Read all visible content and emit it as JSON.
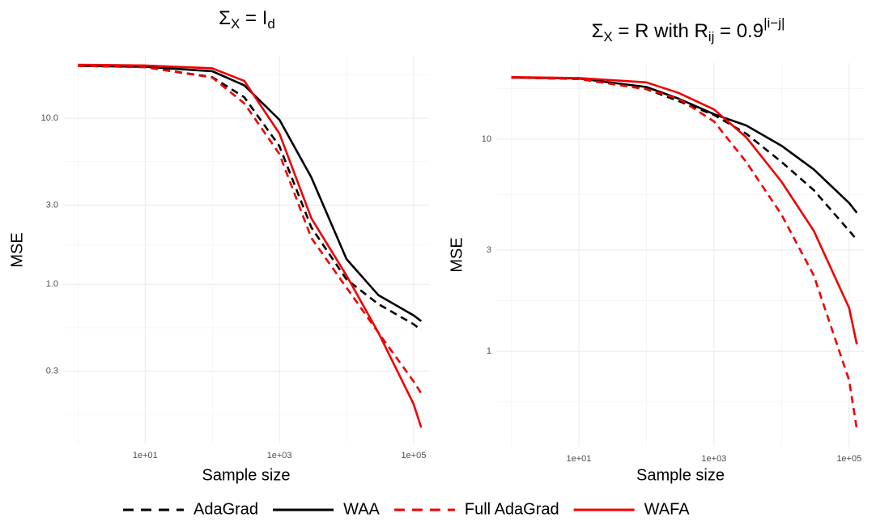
{
  "chart_data": [
    {
      "type": "line",
      "title": [
        {
          "text": "Σ"
        },
        {
          "text": "X",
          "sub": true
        },
        {
          "text": " = I"
        },
        {
          "text": "d",
          "sub": true
        }
      ],
      "xlabel": "Sample size",
      "ylabel": "MSE",
      "x": [
        1,
        10,
        100,
        300,
        1000,
        3000,
        10000,
        30000,
        100000,
        130000
      ],
      "series": [
        {
          "name": "AdaGrad",
          "color": "#000000",
          "dash": true,
          "values": [
            20.7,
            20.3,
            17.7,
            13.4,
            6.8,
            2.2,
            1.07,
            0.76,
            0.575,
            0.53
          ]
        },
        {
          "name": "WAA",
          "color": "#000000",
          "dash": false,
          "values": [
            20.7,
            20.4,
            19.2,
            15.8,
            9.8,
            4.4,
            1.42,
            0.86,
            0.65,
            0.6
          ]
        },
        {
          "name": "Full AdaGrad",
          "color": "#ee0000",
          "dash": true,
          "values": [
            20.7,
            20.3,
            17.6,
            12.3,
            6.1,
            1.9,
            0.955,
            0.51,
            0.26,
            0.22
          ]
        },
        {
          "name": "WAFA",
          "color": "#ee0000",
          "dash": false,
          "values": [
            21,
            20.8,
            20,
            16.8,
            8.1,
            2.5,
            1.13,
            0.51,
            0.19,
            0.137
          ]
        }
      ],
      "xlog": true,
      "ylog": true,
      "grid": true,
      "xlim": [
        0.6,
        170000
      ],
      "ylim": [
        0.11,
        23.5
      ],
      "xticks": [
        {
          "value": 10,
          "label": "1e+01"
        },
        {
          "value": 1000,
          "label": "1e+03"
        },
        {
          "value": 100000,
          "label": "1e+05"
        }
      ],
      "yticks": [
        0.3,
        {
          "value": 1,
          "label": "1.0"
        },
        {
          "value": 3,
          "label": "3.0"
        },
        {
          "value": 10,
          "label": "10.0"
        }
      ],
      "legend": "bottom"
    },
    {
      "type": "line",
      "title": [
        {
          "text": "Σ"
        },
        {
          "text": "X",
          "sub": true
        },
        {
          "text": " = R with R"
        },
        {
          "text": "ij",
          "sub": true
        },
        {
          "text": " = 0.9"
        },
        {
          "text": "|i−j|",
          "sup": true
        }
      ],
      "xlabel": "Sample size",
      "ylabel": "MSE",
      "x": [
        1,
        10,
        100,
        300,
        1000,
        3000,
        10000,
        30000,
        100000,
        130000
      ],
      "series": [
        {
          "name": "AdaGrad",
          "color": "#000000",
          "dash": true,
          "values": [
            19.5,
            19.2,
            17.2,
            15.1,
            13.0,
            10.6,
            7.8,
            5.75,
            3.7,
            3.36
          ]
        },
        {
          "name": "WAA",
          "color": "#000000",
          "dash": false,
          "values": [
            19.5,
            19.3,
            17.6,
            15.5,
            13.1,
            11.6,
            9.3,
            7.2,
            5.0,
            4.5
          ]
        },
        {
          "name": "Full AdaGrad",
          "color": "#ee0000",
          "dash": true,
          "values": [
            19.5,
            19.2,
            17.2,
            15.5,
            12.1,
            7.8,
            4.4,
            2.28,
            0.73,
            0.43
          ]
        },
        {
          "name": "WAFA",
          "color": "#ee0000",
          "dash": false,
          "values": [
            19.6,
            19.4,
            18.5,
            16.5,
            13.8,
            10.2,
            6.3,
            3.7,
            1.6,
            1.08
          ]
        }
      ],
      "xlog": true,
      "ylog": true,
      "grid": true,
      "xlim": [
        0.6,
        170000
      ],
      "ylim": [
        0.355,
        22.8
      ],
      "xticks": [
        {
          "value": 10,
          "label": "1e+01"
        },
        {
          "value": 1000,
          "label": "1e+03"
        },
        {
          "value": 100000,
          "label": "1e+05"
        }
      ],
      "yticks": [
        1,
        3,
        10
      ],
      "legend": "bottom"
    }
  ]
}
